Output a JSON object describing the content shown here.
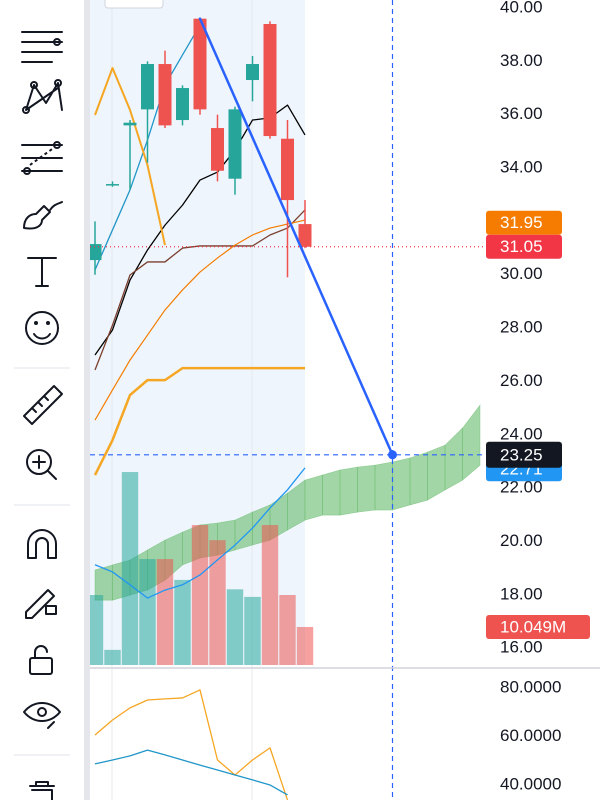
{
  "chart_data": {
    "type": "candlestick",
    "ylim": [
      15.37,
      40.3
    ],
    "yticks": [
      {
        "value": 16,
        "label": "16.00"
      },
      {
        "value": 18,
        "label": "18.00"
      },
      {
        "value": 20,
        "label": "20.00"
      },
      {
        "value": 22,
        "label": "22.00"
      },
      {
        "value": 24,
        "label": "24.00"
      },
      {
        "value": 26,
        "label": "26.00"
      },
      {
        "value": 28,
        "label": "28.00"
      },
      {
        "value": 30,
        "label": "30.00"
      },
      {
        "value": 32,
        "label": "32.00"
      },
      {
        "value": 34,
        "label": "34.00"
      },
      {
        "value": 36,
        "label": "36.00"
      },
      {
        "value": 38,
        "label": "38.00"
      },
      {
        "value": 40,
        "label": "40.00"
      }
    ],
    "up_color": "#26a69a",
    "down_color": "#ef5350",
    "candles": {
      "open": [
        30.55,
        33.4,
        35.6,
        36.2,
        37.9,
        35.8,
        39.6,
        35.5,
        33.6,
        37.3,
        39.4,
        35.1,
        31.9
      ],
      "high": [
        32,
        33.5,
        35.8,
        38,
        38.4,
        37.1,
        39.6,
        36,
        36.3,
        38.2,
        39.5,
        35.8,
        32.8
      ],
      "low": [
        30,
        33.3,
        33.2,
        34.2,
        35.5,
        35.6,
        36,
        33.5,
        33,
        36.5,
        35.1,
        29.9,
        31
      ],
      "close": [
        31.15,
        33.4,
        35.7,
        37.9,
        35.6,
        37,
        36.2,
        33.9,
        36.2,
        37.9,
        35.2,
        32.8,
        31.05
      ]
    },
    "lines": [
      {
        "color": "#000000",
        "width": 1.3,
        "values": [
          26.99,
          27.93,
          29.8,
          30.93,
          31.86,
          32.61,
          33.55,
          33.85,
          34.68,
          35.8,
          35.88,
          36.36,
          35.24
        ]
      },
      {
        "color": "#7b3f2e",
        "width": 1.3,
        "values": [
          26.43,
          28.11,
          29.99,
          30.48,
          30.48,
          31.0,
          31.08,
          31.08,
          31.08,
          31.08,
          31.49,
          31.75,
          32.43
        ]
      },
      {
        "color": "#f57c00",
        "width": 1.2,
        "values": [
          24.55,
          25.68,
          26.8,
          27.74,
          28.68,
          29.43,
          30.1,
          30.63,
          31.11,
          31.49,
          31.75,
          31.9,
          32.05
        ]
      },
      {
        "color": "#f5a623",
        "width": 2.5,
        "values": [
          22.49,
          23.8,
          25.49,
          26.05,
          26.05,
          26.5,
          26.5,
          26.5,
          26.5,
          26.5,
          26.5,
          26.5,
          26.5
        ]
      },
      {
        "color": "#2196c8",
        "width": 1.3,
        "values": [
          30.18,
          31.68,
          33.18,
          35.05,
          37.11,
          38.24,
          39.36,
          null,
          null,
          null,
          null,
          null,
          null
        ]
      },
      {
        "color": "#f5a623",
        "width": 2,
        "values": [
          35.99,
          37.75,
          36.18,
          34.11,
          31.11,
          null,
          null,
          null,
          null,
          null,
          null,
          null,
          null
        ]
      }
    ],
    "cloud": {
      "color": "#66bb6a",
      "upper": [
        18.93,
        19.12,
        19.3,
        19.68,
        20.05,
        20.35,
        20.62,
        20.69,
        20.8,
        21.1,
        21.37,
        21.81,
        22.3,
        22.49,
        22.68,
        22.79,
        22.86,
        22.98,
        23.13,
        23.35,
        23.61,
        24.25,
        25.11
      ],
      "lower": [
        17.8,
        17.8,
        17.99,
        18.18,
        18.55,
        19.12,
        19.38,
        19.49,
        19.68,
        19.87,
        20.05,
        20.43,
        20.8,
        20.99,
        20.99,
        21.1,
        21.18,
        21.18,
        21.37,
        21.55,
        21.93,
        22.3,
        22.86
      ]
    },
    "volume": {
      "vlim": [
        0,
        60
      ],
      "values": [
        18.5,
        4,
        51,
        28,
        28,
        22.5,
        37,
        33,
        20,
        18,
        37,
        18.5,
        10.049
      ],
      "ma": {
        "color": "#2196f3",
        "values": [
          26.5,
          24.6,
          21.2,
          17.7,
          19.8,
          21.2,
          23.8,
          27.8,
          31.7,
          36.2,
          41.5,
          46.3,
          52.1
        ]
      },
      "last_label": {
        "value": 10.049,
        "label": "10.049M",
        "color": "#ef5350"
      }
    },
    "price_labels": [
      {
        "value": 31.95,
        "color": "#f57c00",
        "line": false
      },
      {
        "value": 31.05,
        "color": "#f23645",
        "line": true
      },
      {
        "value": 22.71,
        "color": "#2196f3",
        "line": false
      }
    ],
    "trendline": {
      "color": "#2962ff",
      "points": [
        {
          "index": 6,
          "value": 39.6
        },
        {
          "index": 17,
          "value": 23.25
        }
      ]
    },
    "crosshair": {
      "index": 17,
      "value": 23.25,
      "color": "#131722"
    },
    "indicator": {
      "ylim": [
        33.81,
        87.42
      ],
      "yticks": [
        {
          "value": 40,
          "label": "40.0000"
        },
        {
          "value": 60,
          "label": "60.0000"
        },
        {
          "value": 80,
          "label": "80.0000"
        }
      ],
      "series": [
        {
          "color": "#f5a623",
          "values": [
            60.6,
            66.8,
            71.8,
            75.05,
            75.5,
            75.9,
            79.2,
            50.3,
            44.1,
            50.3,
            55.3,
            33.8,
            null
          ]
        },
        {
          "color": "#2196c8",
          "values": [
            48.7,
            50.3,
            52.0,
            54.4,
            52.4,
            50.3,
            48.2,
            46.2,
            44.1,
            42.1,
            40.0,
            35.9,
            null
          ]
        }
      ]
    }
  }
}
